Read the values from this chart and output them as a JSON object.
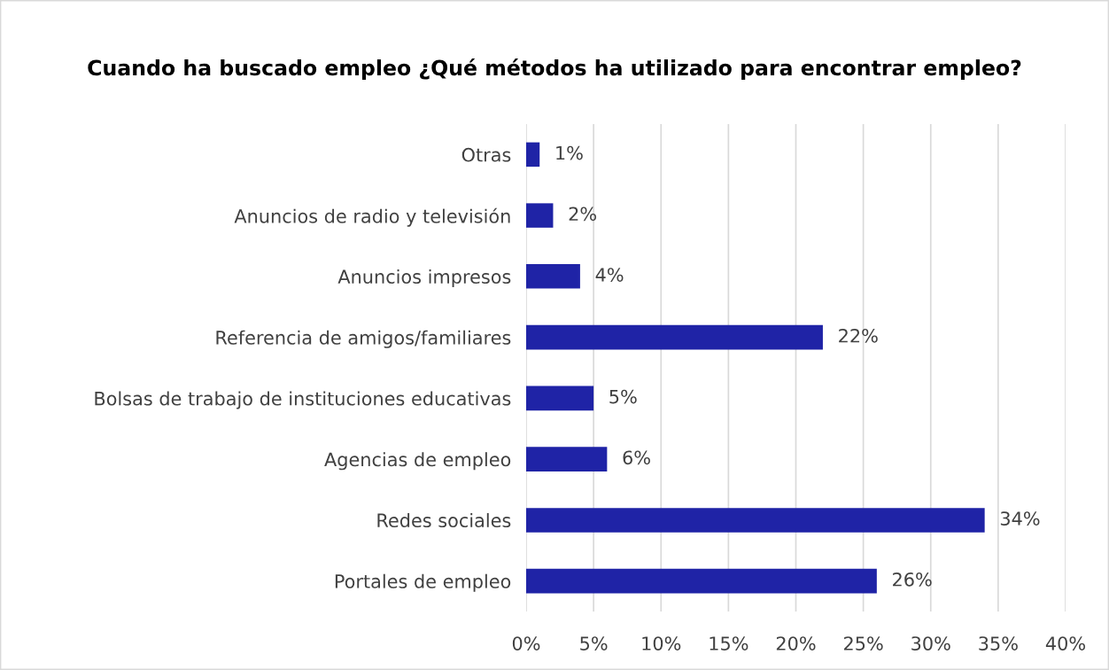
{
  "chart_data": {
    "type": "bar",
    "orientation": "horizontal",
    "title": "Cuando ha buscado empleo ¿Qué métodos ha utilizado para encontrar empleo?",
    "categories": [
      "Otras",
      "Anuncios de radio y televisión",
      "Anuncios impresos",
      "Referencia de amigos/familiares",
      "Bolsas de trabajo de instituciones educativas",
      "Agencias de empleo",
      "Redes sociales",
      "Portales de empleo"
    ],
    "values": [
      1,
      2,
      4,
      22,
      5,
      6,
      34,
      26
    ],
    "value_labels": [
      "1%",
      "2%",
      "4%",
      "22%",
      "5%",
      "6%",
      "34%",
      "26%"
    ],
    "color": "#1f23a6",
    "xlim": [
      0,
      40
    ],
    "xticks": [
      {
        "value": 0,
        "label": "0%"
      },
      {
        "value": 5,
        "label": "5%"
      },
      {
        "value": 10,
        "label": "10%"
      },
      {
        "value": 15,
        "label": "15%"
      },
      {
        "value": 20,
        "label": "20%"
      },
      {
        "value": 25,
        "label": "25%"
      },
      {
        "value": 30,
        "label": "30%"
      },
      {
        "value": 35,
        "label": "35%"
      },
      {
        "value": 40,
        "label": "40%"
      }
    ],
    "grid": "x",
    "legend": false
  }
}
